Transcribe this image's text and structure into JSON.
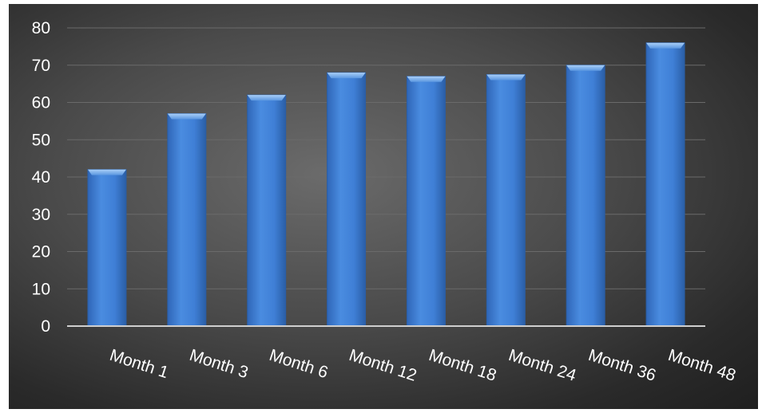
{
  "chart_data": {
    "type": "bar",
    "categories": [
      "Month 1",
      "Month 3",
      "Month 6",
      "Month 12",
      "Month 18",
      "Month 24",
      "Month 36",
      "Month 48"
    ],
    "values": [
      42,
      57,
      62,
      68,
      67,
      67.5,
      70,
      76
    ],
    "title": "",
    "xlabel": "",
    "ylabel": "",
    "ylim": [
      0,
      80
    ],
    "yticks": [
      0,
      10,
      20,
      30,
      40,
      50,
      60,
      70,
      80
    ],
    "grid": true,
    "legend": "none",
    "colors": {
      "bar": "#3f7fd6",
      "bar_edge": "#2a5ea6",
      "bar_cap": "#7fb2f0",
      "grid": "#6a6a6a",
      "axis": "#cfcfcf",
      "text": "#ffffff",
      "background": "#3a3a3a"
    }
  }
}
